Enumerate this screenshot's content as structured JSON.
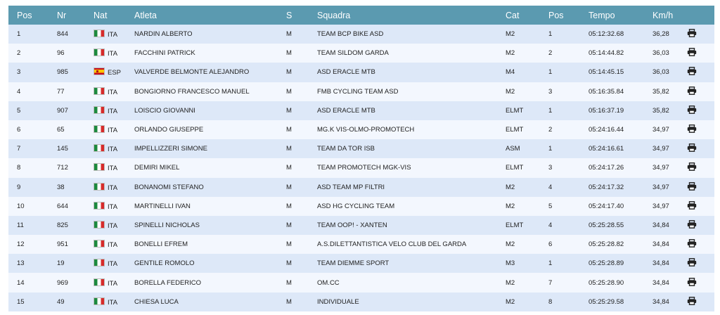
{
  "columns": [
    "Pos",
    "Nr",
    "Nat",
    "Atleta",
    "S",
    "Squadra",
    "Cat",
    "Pos",
    "Tempo",
    "Km/h"
  ],
  "print_icon": "printer-icon",
  "flags": {
    "ITA": "italy-flag-icon",
    "ESP": "spain-flag-icon"
  },
  "rows": [
    {
      "pos": "1",
      "nr": "844",
      "nat": "ITA",
      "atleta": "NARDIN ALBERTO",
      "s": "M",
      "squadra": "TEAM BCP BIKE ASD",
      "cat": "M2",
      "catpos": "1",
      "tempo": "05:12:32.68",
      "kmh": "36,28"
    },
    {
      "pos": "2",
      "nr": "96",
      "nat": "ITA",
      "atleta": "FACCHINI PATRICK",
      "s": "M",
      "squadra": "TEAM SILDOM GARDA",
      "cat": "M2",
      "catpos": "2",
      "tempo": "05:14:44.82",
      "kmh": "36,03"
    },
    {
      "pos": "3",
      "nr": "985",
      "nat": "ESP",
      "atleta": "VALVERDE BELMONTE ALEJANDRO",
      "s": "M",
      "squadra": "ASD ERACLE MTB",
      "cat": "M4",
      "catpos": "1",
      "tempo": "05:14:45.15",
      "kmh": "36,03"
    },
    {
      "pos": "4",
      "nr": "77",
      "nat": "ITA",
      "atleta": "BONGIORNO FRANCESCO MANUEL",
      "s": "M",
      "squadra": "FMB CYCLING TEAM ASD",
      "cat": "M2",
      "catpos": "3",
      "tempo": "05:16:35.84",
      "kmh": "35,82"
    },
    {
      "pos": "5",
      "nr": "907",
      "nat": "ITA",
      "atleta": "LOISCIO GIOVANNI",
      "s": "M",
      "squadra": "ASD ERACLE MTB",
      "cat": "ELMT",
      "catpos": "1",
      "tempo": "05:16:37.19",
      "kmh": "35,82"
    },
    {
      "pos": "6",
      "nr": "65",
      "nat": "ITA",
      "atleta": "ORLANDO GIUSEPPE",
      "s": "M",
      "squadra": "MG.K VIS-OLMO-PROMOTECH",
      "cat": "ELMT",
      "catpos": "2",
      "tempo": "05:24:16.44",
      "kmh": "34,97"
    },
    {
      "pos": "7",
      "nr": "145",
      "nat": "ITA",
      "atleta": "IMPELLIZZERI SIMONE",
      "s": "M",
      "squadra": "TEAM DA TOR ISB",
      "cat": "ASM",
      "catpos": "1",
      "tempo": "05:24:16.61",
      "kmh": "34,97"
    },
    {
      "pos": "8",
      "nr": "712",
      "nat": "ITA",
      "atleta": "DEMIRI MIKEL",
      "s": "M",
      "squadra": "TEAM PROMOTECH MGK-VIS",
      "cat": "ELMT",
      "catpos": "3",
      "tempo": "05:24:17.26",
      "kmh": "34,97"
    },
    {
      "pos": "9",
      "nr": "38",
      "nat": "ITA",
      "atleta": "BONANOMI STEFANO",
      "s": "M",
      "squadra": "ASD TEAM MP FILTRI",
      "cat": "M2",
      "catpos": "4",
      "tempo": "05:24:17.32",
      "kmh": "34,97"
    },
    {
      "pos": "10",
      "nr": "644",
      "nat": "ITA",
      "atleta": "MARTINELLI IVAN",
      "s": "M",
      "squadra": "ASD HG CYCLING TEAM",
      "cat": "M2",
      "catpos": "5",
      "tempo": "05:24:17.40",
      "kmh": "34,97"
    },
    {
      "pos": "11",
      "nr": "825",
      "nat": "ITA",
      "atleta": "SPINELLI NICHOLAS",
      "s": "M",
      "squadra": "TEAM OOP! - XANTEN",
      "cat": "ELMT",
      "catpos": "4",
      "tempo": "05:25:28.55",
      "kmh": "34,84"
    },
    {
      "pos": "12",
      "nr": "951",
      "nat": "ITA",
      "atleta": "BONELLI EFREM",
      "s": "M",
      "squadra": "A.S.DILETTANTISTICA VELO CLUB DEL GARDA",
      "cat": "M2",
      "catpos": "6",
      "tempo": "05:25:28.82",
      "kmh": "34,84"
    },
    {
      "pos": "13",
      "nr": "19",
      "nat": "ITA",
      "atleta": "GENTILE ROMOLO",
      "s": "M",
      "squadra": "TEAM DIEMME SPORT",
      "cat": "M3",
      "catpos": "1",
      "tempo": "05:25:28.89",
      "kmh": "34,84"
    },
    {
      "pos": "14",
      "nr": "969",
      "nat": "ITA",
      "atleta": "BORELLA FEDERICO",
      "s": "M",
      "squadra": "OM.CC",
      "cat": "M2",
      "catpos": "7",
      "tempo": "05:25:28.90",
      "kmh": "34,84"
    },
    {
      "pos": "15",
      "nr": "49",
      "nat": "ITA",
      "atleta": "CHIESA LUCA",
      "s": "M",
      "squadra": "INDIVIDUALE",
      "cat": "M2",
      "catpos": "8",
      "tempo": "05:25:29.58",
      "kmh": "34,84"
    }
  ]
}
